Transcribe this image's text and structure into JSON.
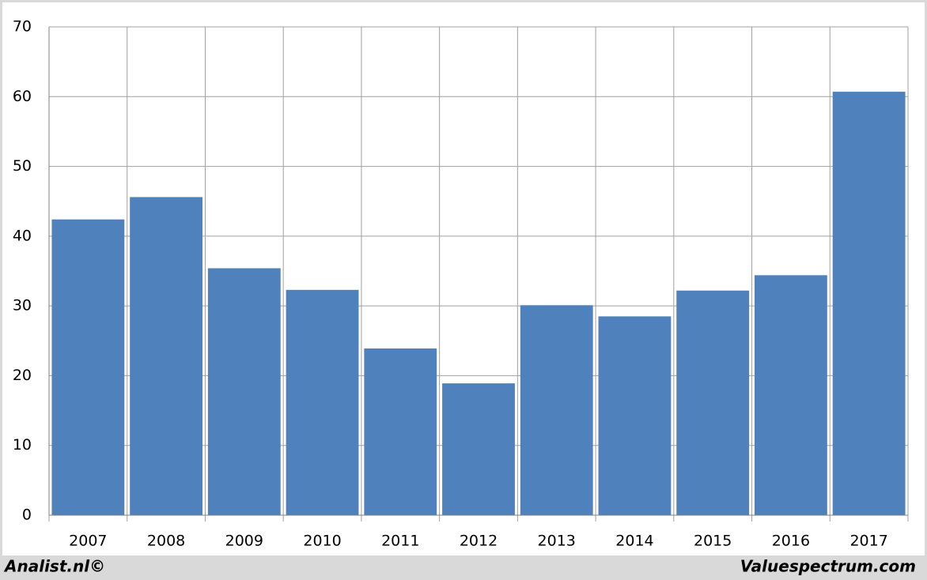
{
  "chart_data": {
    "type": "bar",
    "categories": [
      "2007",
      "2008",
      "2009",
      "2010",
      "2011",
      "2012",
      "2013",
      "2014",
      "2015",
      "2016",
      "2017"
    ],
    "values": [
      42.4,
      45.6,
      35.4,
      32.3,
      23.9,
      18.9,
      30.1,
      28.5,
      32.2,
      34.4,
      60.7
    ],
    "color": "#4f81bd",
    "ylim": [
      0,
      70
    ],
    "yticks": [
      0,
      10,
      20,
      30,
      40,
      50,
      60,
      70
    ],
    "grid": true,
    "annotations": [
      "Analist.nl©",
      "Valuespectrum.com"
    ]
  }
}
